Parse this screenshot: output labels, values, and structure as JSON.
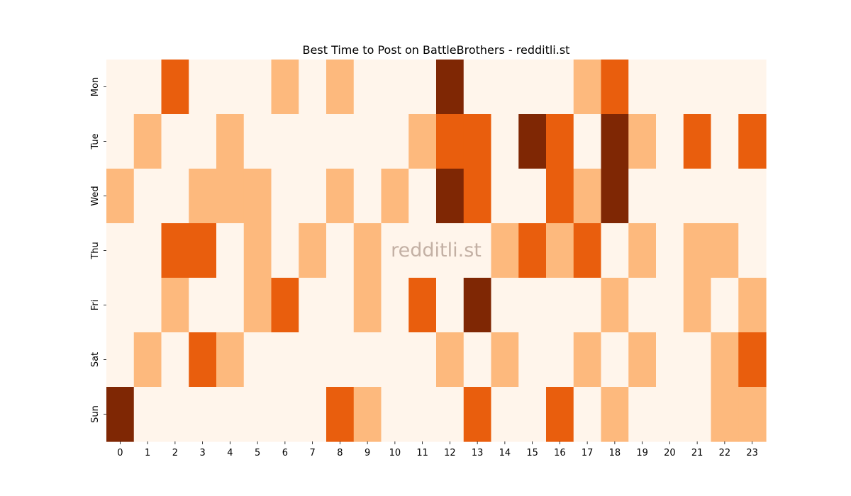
{
  "chart_data": {
    "type": "heatmap",
    "title": "Best Time to Post on BattleBrothers - redditli.st",
    "watermark": "redditli.st",
    "x": [
      "0",
      "1",
      "2",
      "3",
      "4",
      "5",
      "6",
      "7",
      "8",
      "9",
      "10",
      "11",
      "12",
      "13",
      "14",
      "15",
      "16",
      "17",
      "18",
      "19",
      "20",
      "21",
      "22",
      "23"
    ],
    "y": [
      "Mon",
      "Tue",
      "Wed",
      "Thu",
      "Fri",
      "Sat",
      "Sun"
    ],
    "levels": [
      0,
      1,
      2,
      3
    ],
    "colors": [
      "#fff5eb",
      "#fdb97d",
      "#e95e0d",
      "#7f2704"
    ],
    "values": [
      [
        0,
        0,
        2,
        0,
        0,
        0,
        1,
        0,
        1,
        0,
        0,
        0,
        3,
        0,
        0,
        0,
        0,
        1,
        2,
        0,
        0,
        0,
        0,
        0
      ],
      [
        0,
        1,
        0,
        0,
        1,
        0,
        0,
        0,
        0,
        0,
        0,
        1,
        2,
        2,
        0,
        3,
        2,
        0,
        3,
        1,
        0,
        2,
        0,
        2
      ],
      [
        1,
        0,
        0,
        1,
        1,
        1,
        0,
        0,
        1,
        0,
        1,
        0,
        3,
        2,
        0,
        0,
        2,
        1,
        3,
        0,
        0,
        0,
        0,
        0
      ],
      [
        0,
        0,
        2,
        2,
        0,
        1,
        0,
        1,
        0,
        1,
        0,
        0,
        0,
        0,
        1,
        2,
        1,
        2,
        0,
        1,
        0,
        1,
        1,
        0
      ],
      [
        0,
        0,
        1,
        0,
        0,
        1,
        2,
        0,
        0,
        1,
        0,
        2,
        0,
        3,
        0,
        0,
        0,
        0,
        1,
        0,
        0,
        1,
        0,
        1
      ],
      [
        0,
        1,
        0,
        2,
        1,
        0,
        0,
        0,
        0,
        0,
        0,
        0,
        1,
        0,
        1,
        0,
        0,
        1,
        0,
        1,
        0,
        0,
        1,
        2
      ],
      [
        3,
        0,
        0,
        0,
        0,
        0,
        0,
        0,
        2,
        1,
        0,
        0,
        0,
        2,
        0,
        0,
        2,
        0,
        1,
        0,
        0,
        0,
        1,
        1
      ]
    ],
    "legend": "none",
    "grid": false
  }
}
